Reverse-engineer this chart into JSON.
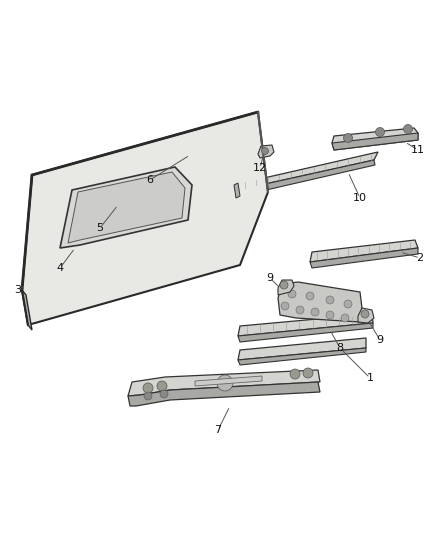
{
  "bg": "#ffffff",
  "fig_w": 4.38,
  "fig_h": 5.33,
  "dpi": 100,
  "roof_fill": "#e8e8e4",
  "roof_edge": "#2a2a2a",
  "roof_side": "#b0b0ac",
  "sunroof_fill": "#d8d8d4",
  "sunroof_edge": "#333333",
  "part_fill": "#d4d4d0",
  "part_edge": "#333333",
  "part_dark_fill": "#a8a8a4",
  "bracket_fill": "#c8c8c4",
  "label_color": "#111111",
  "leader_color": "#555555"
}
